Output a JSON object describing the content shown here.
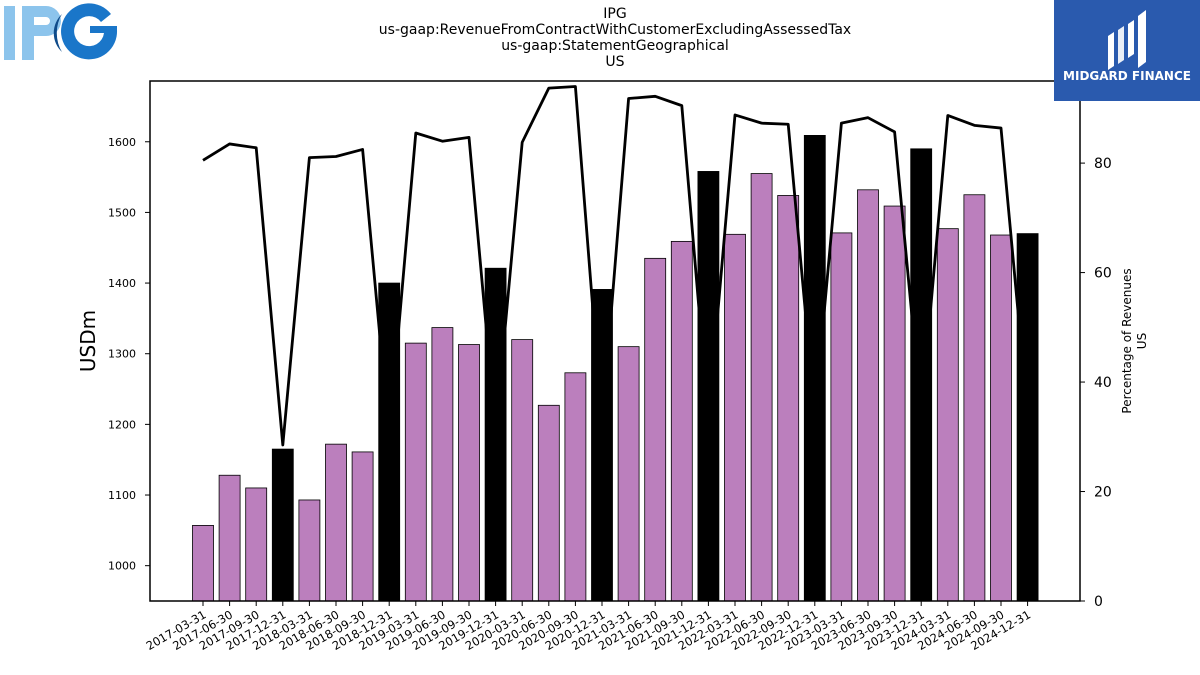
{
  "header": {
    "title_lines": [
      "IPG",
      "us-gaap:RevenueFromContractWithCustomerExcludingAssessedTax",
      "us-gaap:StatementGeographical",
      "US"
    ]
  },
  "logos": {
    "left": {
      "text": "IPG",
      "colors": [
        "#8cc4ec",
        "#1a76c9"
      ]
    },
    "right": {
      "text": "MIDGARD FINANCE",
      "background": "#2a5aae"
    }
  },
  "chart_data": {
    "type": "bar",
    "ylabel": "USDm",
    "y2label_lines": [
      "Percentage of Revenues",
      "US"
    ],
    "ylim": [
      950,
      1686
    ],
    "yticks": [
      1000,
      1100,
      1200,
      1300,
      1400,
      1500,
      1600
    ],
    "y2lim": [
      0,
      95
    ],
    "y2ticks": [
      0,
      20,
      40,
      60,
      80
    ],
    "categories": [
      "2017-03-31",
      "2017-06-30",
      "2017-09-30",
      "2017-12-31",
      "2018-03-31",
      "2018-06-30",
      "2018-09-30",
      "2018-12-31",
      "2019-03-31",
      "2019-06-30",
      "2019-09-30",
      "2019-12-31",
      "2020-03-31",
      "2020-06-30",
      "2020-09-30",
      "2020-12-31",
      "2021-03-31",
      "2021-06-30",
      "2021-09-30",
      "2021-12-31",
      "2022-03-31",
      "2022-06-30",
      "2022-09-30",
      "2022-12-31",
      "2023-03-31",
      "2023-06-30",
      "2023-09-30",
      "2023-12-31",
      "2024-03-31",
      "2024-06-30",
      "2024-09-30",
      "2024-12-31"
    ],
    "values": [
      1057,
      1128,
      1110,
      1165,
      1093,
      1172,
      1161,
      1400,
      1315,
      1337,
      1313,
      1421,
      1320,
      1227,
      1273,
      1391,
      1310,
      1435,
      1459,
      1558,
      1469,
      1555,
      1524,
      1609,
      1471,
      1532,
      1509,
      1590,
      1477,
      1525,
      1468,
      1470
    ],
    "bar_colors": {
      "quarter": "#bb7fbd",
      "year_end": "#000000"
    },
    "series": [
      {
        "values_key": "values"
      },
      {
        "axis": "right",
        "type": "line",
        "color": "#000000",
        "values": [
          80.5,
          83.5,
          82.8,
          28.5,
          81,
          81.2,
          82.5,
          30,
          85.5,
          84,
          84.7,
          31,
          83.8,
          93.7,
          94,
          32,
          91.8,
          92.2,
          90.5,
          33,
          88.8,
          87.3,
          87.1,
          34,
          87.3,
          88.3,
          85.7,
          34,
          88.7,
          86.9,
          86.4,
          34
        ]
      }
    ]
  }
}
